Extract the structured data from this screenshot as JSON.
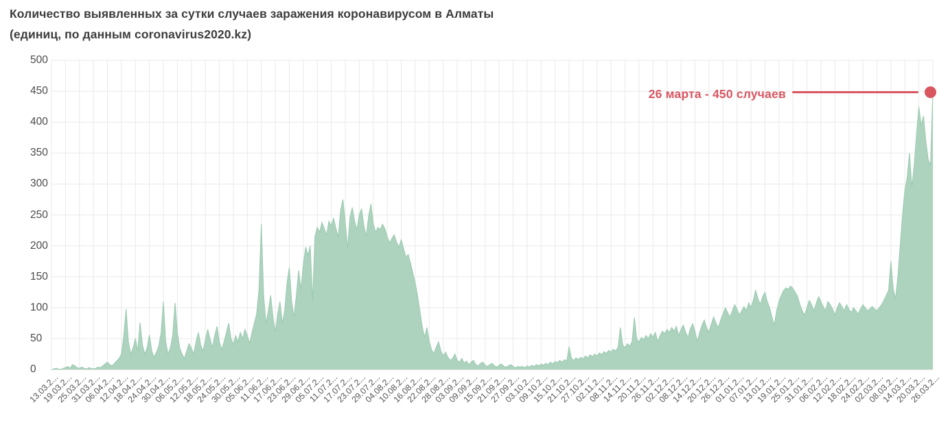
{
  "title": {
    "line1": "Количество выявленных за сутки случаев заражения коронавирусом в Алматы",
    "line2": "(единиц, по данным coronavirus2020.kz)"
  },
  "annotation": {
    "label": "26 марта - 450 случаев",
    "date": "26 марта",
    "value": 450
  },
  "colors": {
    "area_fill": "#add3be",
    "area_stroke": "#99c9af",
    "grid": "#e9e9e9",
    "baseline": "#d6d6d6",
    "title_text": "#3d3d3d",
    "axis_text": "#4a4a4a",
    "tick_text": "#555555",
    "annotation_red": "#d95560",
    "background": "#ffffff"
  },
  "chart_data": {
    "type": "area",
    "title": "Количество выявленных за сутки случаев заражения коронавирусом в Алматы (единиц, по данным coronavirus2020.kz)",
    "xlabel": "",
    "ylabel": "",
    "x_start_date": "13.03.2020",
    "x_end_date": "26.03.2021",
    "x_label_interval_days": 6,
    "grid": true,
    "legend": false,
    "ylim": [
      0,
      500
    ],
    "y_ticks": [
      0,
      50,
      100,
      150,
      200,
      250,
      300,
      350,
      400,
      450,
      500
    ],
    "x_tick_labels": [
      "13.03.2...",
      "19.03.2...",
      "25.03.2...",
      "31.03.2...",
      "06.04.2...",
      "12.04.2...",
      "18.04.2...",
      "24.04.2...",
      "30.04.2...",
      "06.05.2...",
      "12.05.2...",
      "18.05.2...",
      "24.05.2...",
      "30.05.2...",
      "05.06.2...",
      "11.06.2...",
      "17.06.2...",
      "23.06.2...",
      "29.06.2...",
      "05.07.2...",
      "11.07.2...",
      "17.07.2...",
      "23.07.2...",
      "29.07.2...",
      "04.08.2...",
      "10.08.2...",
      "16.08.2...",
      "22.08.2...",
      "28.08.2...",
      "03.09.2...",
      "09.09.2...",
      "15.09.2...",
      "21.09.2...",
      "27.09.2...",
      "03.10.2...",
      "09.10.2...",
      "15.10.2...",
      "21.10.2...",
      "27.10.2...",
      "02.11.2...",
      "08.11.2...",
      "14.11.2...",
      "20.11.2...",
      "26.11.2...",
      "02.12.2...",
      "08.12.2...",
      "14.12.2...",
      "20.12.2...",
      "26.12.2...",
      "01.01.2...",
      "07.01.2...",
      "13.01.2...",
      "19.01.2...",
      "25.01.2...",
      "31.01.2...",
      "06.02.2...",
      "12.02.2...",
      "18.02.2...",
      "24.02.2...",
      "02.03.2...",
      "08.03.2...",
      "14.03.2...",
      "20.03.2...",
      "26.03.2..."
    ],
    "values": [
      0,
      1,
      2,
      1,
      0,
      2,
      3,
      5,
      2,
      8,
      6,
      3,
      2,
      4,
      2,
      1,
      3,
      2,
      1,
      2,
      4,
      3,
      6,
      9,
      12,
      8,
      6,
      10,
      14,
      18,
      25,
      55,
      98,
      45,
      25,
      35,
      50,
      30,
      76,
      40,
      25,
      35,
      56,
      30,
      20,
      28,
      38,
      60,
      110,
      45,
      25,
      35,
      55,
      108,
      60,
      35,
      25,
      18,
      30,
      42,
      35,
      25,
      45,
      60,
      40,
      30,
      48,
      65,
      50,
      35,
      55,
      70,
      45,
      32,
      45,
      60,
      75,
      50,
      40,
      55,
      45,
      60,
      50,
      65,
      55,
      42,
      60,
      75,
      90,
      130,
      235,
      120,
      75,
      95,
      120,
      85,
      60,
      90,
      110,
      75,
      95,
      140,
      165,
      110,
      85,
      120,
      160,
      130,
      170,
      198,
      185,
      200,
      110,
      215,
      230,
      222,
      238,
      228,
      218,
      240,
      232,
      245,
      228,
      215,
      258,
      275,
      238,
      196,
      246,
      262,
      240,
      226,
      250,
      260,
      232,
      216,
      248,
      268,
      236,
      222,
      230,
      226,
      235,
      228,
      215,
      205,
      212,
      218,
      206,
      198,
      210,
      196,
      182,
      186,
      172,
      156,
      140,
      120,
      95,
      70,
      52,
      68,
      46,
      32,
      26,
      36,
      45,
      30,
      22,
      28,
      20,
      15,
      18,
      25,
      15,
      12,
      18,
      10,
      14,
      8,
      12,
      15,
      8,
      6,
      10,
      12,
      7,
      5,
      8,
      10,
      6,
      4,
      7,
      9,
      5,
      4,
      6,
      8,
      5,
      3,
      5,
      4,
      5,
      3,
      6,
      4,
      7,
      5,
      8,
      6,
      9,
      7,
      10,
      8,
      12,
      9,
      13,
      11,
      15,
      12,
      16,
      14,
      37,
      18,
      15,
      19,
      16,
      20,
      17,
      22,
      19,
      24,
      21,
      25,
      22,
      27,
      24,
      29,
      26,
      31,
      28,
      33,
      30,
      36,
      68,
      40,
      35,
      42,
      38,
      45,
      84,
      50,
      44,
      52,
      48,
      55,
      50,
      58,
      52,
      60,
      45,
      55,
      62,
      58,
      65,
      60,
      68,
      62,
      70,
      55,
      65,
      72,
      60,
      52,
      66,
      74,
      62,
      45,
      60,
      72,
      80,
      68,
      60,
      74,
      85,
      75,
      68,
      80,
      90,
      100,
      92,
      85,
      95,
      105,
      98,
      88,
      95,
      102,
      95,
      108,
      100,
      112,
      128,
      115,
      105,
      118,
      125,
      110,
      100,
      85,
      72,
      95,
      110,
      120,
      128,
      132,
      130,
      135,
      131,
      125,
      118,
      105,
      95,
      88,
      100,
      112,
      105,
      95,
      108,
      118,
      110,
      102,
      95,
      110,
      105,
      98,
      88,
      100,
      108,
      102,
      95,
      105,
      98,
      92,
      100,
      95,
      90,
      98,
      105,
      100,
      95,
      98,
      102,
      98,
      95,
      100,
      105,
      112,
      120,
      128,
      175,
      130,
      115,
      150,
      200,
      250,
      290,
      310,
      350,
      295,
      330,
      380,
      425,
      395,
      410,
      370,
      340,
      330,
      450
    ]
  }
}
